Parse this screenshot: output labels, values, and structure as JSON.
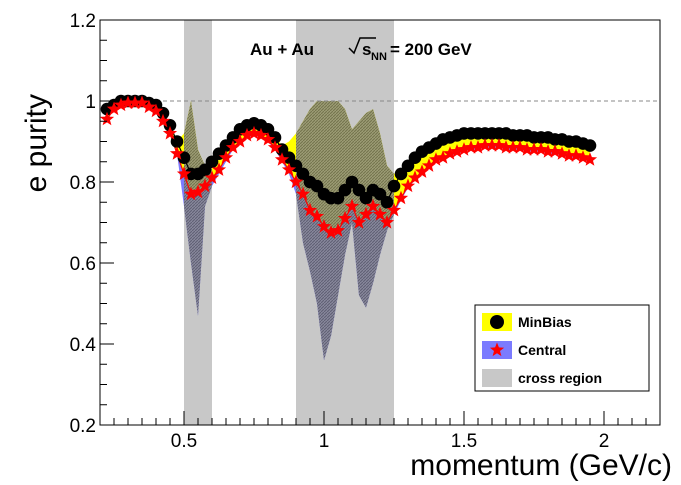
{
  "chart_data": {
    "type": "scatter",
    "xlabel": "momentum (GeV/c)",
    "ylabel": "e purity",
    "xlim": [
      0.2,
      2.2
    ],
    "ylim": [
      0.2,
      1.2
    ],
    "x_ticks": [
      "0.5",
      "1",
      "1.5",
      "2"
    ],
    "y_ticks": [
      "0.2",
      "0.4",
      "0.6",
      "0.8",
      "1",
      "1.2"
    ],
    "reference_line": 1.0,
    "annotation": {
      "system": "Au + Au",
      "sqrt": "s",
      "subscript": "NN",
      "energy": "= 200 GeV"
    },
    "legend_position": "bottom-right",
    "legend": [
      {
        "label": "MinBias",
        "color": "#ffff00",
        "marker": "circle"
      },
      {
        "label": "Central",
        "color": "#7b7bff",
        "marker": "star"
      },
      {
        "label": "cross region",
        "color": "#c8c8c8",
        "marker": "box"
      }
    ],
    "cross_regions": [
      [
        0.5,
        0.6
      ],
      [
        0.9,
        1.25
      ]
    ],
    "x": [
      0.225,
      0.25,
      0.275,
      0.3,
      0.325,
      0.35,
      0.375,
      0.4,
      0.425,
      0.45,
      0.475,
      0.5,
      0.525,
      0.55,
      0.575,
      0.6,
      0.625,
      0.65,
      0.675,
      0.7,
      0.725,
      0.75,
      0.775,
      0.8,
      0.825,
      0.85,
      0.875,
      0.9,
      0.925,
      0.95,
      0.975,
      1.0,
      1.025,
      1.05,
      1.075,
      1.1,
      1.125,
      1.15,
      1.175,
      1.2,
      1.225,
      1.25,
      1.275,
      1.3,
      1.325,
      1.35,
      1.375,
      1.4,
      1.425,
      1.45,
      1.475,
      1.5,
      1.525,
      1.55,
      1.575,
      1.6,
      1.625,
      1.65,
      1.675,
      1.7,
      1.725,
      1.75,
      1.775,
      1.8,
      1.825,
      1.85,
      1.875,
      1.9,
      1.925,
      1.95
    ],
    "series": [
      {
        "name": "MinBias",
        "marker": "circle",
        "color": "#000000",
        "band_color": "#ffff00",
        "values": [
          0.98,
          0.99,
          1.0,
          1.0,
          1.0,
          1.0,
          0.995,
          0.99,
          0.97,
          0.94,
          0.9,
          0.86,
          0.82,
          0.82,
          0.83,
          0.85,
          0.87,
          0.89,
          0.91,
          0.93,
          0.94,
          0.945,
          0.94,
          0.93,
          0.91,
          0.88,
          0.86,
          0.84,
          0.82,
          0.8,
          0.79,
          0.77,
          0.76,
          0.76,
          0.78,
          0.8,
          0.78,
          0.76,
          0.78,
          0.77,
          0.75,
          0.79,
          0.82,
          0.84,
          0.86,
          0.875,
          0.885,
          0.895,
          0.905,
          0.91,
          0.915,
          0.92,
          0.92,
          0.92,
          0.92,
          0.92,
          0.92,
          0.92,
          0.915,
          0.915,
          0.915,
          0.91,
          0.91,
          0.91,
          0.905,
          0.905,
          0.9,
          0.9,
          0.895,
          0.89
        ],
        "band_upper": [
          0.98,
          0.99,
          1.0,
          1.0,
          1.0,
          1.0,
          0.995,
          0.99,
          0.97,
          0.94,
          0.9,
          0.92,
          1.0,
          0.88,
          0.84,
          0.86,
          0.88,
          0.9,
          0.92,
          0.94,
          0.95,
          0.95,
          0.945,
          0.935,
          0.915,
          0.89,
          0.9,
          0.92,
          0.95,
          0.98,
          1.0,
          1.0,
          1.0,
          1.0,
          0.98,
          0.93,
          0.95,
          0.97,
          0.98,
          0.92,
          0.84,
          0.82,
          0.83,
          0.845,
          0.865,
          0.88,
          0.89,
          0.9,
          0.91,
          0.915,
          0.92,
          0.925,
          0.925,
          0.925,
          0.925,
          0.925,
          0.925,
          0.925,
          0.92,
          0.92,
          0.92,
          0.915,
          0.915,
          0.915,
          0.91,
          0.91,
          0.905,
          0.905,
          0.9,
          0.895
        ]
      },
      {
        "name": "Central",
        "marker": "star",
        "color": "#ff0000",
        "band_color": "#7b7bff",
        "values": [
          0.955,
          0.98,
          0.99,
          0.995,
          0.995,
          0.995,
          0.985,
          0.975,
          0.95,
          0.92,
          0.87,
          0.82,
          0.77,
          0.775,
          0.79,
          0.81,
          0.83,
          0.86,
          0.885,
          0.9,
          0.915,
          0.92,
          0.915,
          0.905,
          0.885,
          0.855,
          0.83,
          0.8,
          0.77,
          0.73,
          0.715,
          0.69,
          0.675,
          0.68,
          0.71,
          0.74,
          0.7,
          0.72,
          0.74,
          0.72,
          0.7,
          0.73,
          0.76,
          0.79,
          0.81,
          0.825,
          0.84,
          0.855,
          0.86,
          0.87,
          0.875,
          0.88,
          0.885,
          0.885,
          0.89,
          0.89,
          0.89,
          0.885,
          0.885,
          0.885,
          0.88,
          0.88,
          0.88,
          0.875,
          0.875,
          0.87,
          0.865,
          0.865,
          0.86,
          0.855
        ],
        "band_lower": [
          0.955,
          0.98,
          0.99,
          0.995,
          0.995,
          0.995,
          0.985,
          0.975,
          0.95,
          0.92,
          0.87,
          0.74,
          0.6,
          0.47,
          0.74,
          0.79,
          0.82,
          0.85,
          0.88,
          0.9,
          0.91,
          0.915,
          0.91,
          0.9,
          0.88,
          0.85,
          0.82,
          0.77,
          0.65,
          0.58,
          0.5,
          0.36,
          0.42,
          0.52,
          0.62,
          0.7,
          0.52,
          0.49,
          0.55,
          0.62,
          0.68,
          0.72,
          0.755,
          0.785,
          0.805,
          0.82,
          0.835,
          0.85,
          0.855,
          0.865,
          0.87,
          0.875,
          0.88,
          0.88,
          0.885,
          0.885,
          0.885,
          0.88,
          0.88,
          0.88,
          0.875,
          0.875,
          0.875,
          0.87,
          0.87,
          0.865,
          0.86,
          0.86,
          0.855,
          0.85
        ]
      }
    ]
  }
}
